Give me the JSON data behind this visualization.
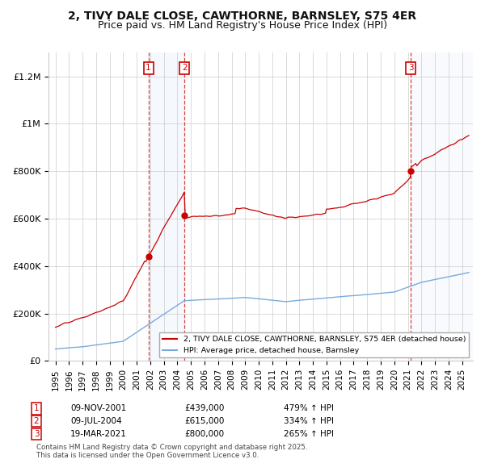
{
  "title": "2, TIVY DALE CLOSE, CAWTHORNE, BARNSLEY, S75 4ER",
  "subtitle": "Price paid vs. HM Land Registry's House Price Index (HPI)",
  "title_fontsize": 10,
  "subtitle_fontsize": 9,
  "property_color": "#cc0000",
  "hpi_color": "#7aaadd",
  "sale_marker_color": "#cc0000",
  "vline_color": "#cc0000",
  "shading_color": "#ccddf5",
  "background_color": "#ffffff",
  "grid_color": "#cccccc",
  "sales": [
    {
      "label": "1",
      "date_num": 2001.86,
      "price": 439000,
      "hpi_pct": "479% ↑ HPI",
      "date_str": "09-NOV-2001"
    },
    {
      "label": "2",
      "date_num": 2004.52,
      "price": 615000,
      "hpi_pct": "334% ↑ HPI",
      "date_str": "09-JUL-2004"
    },
    {
      "label": "3",
      "date_num": 2021.22,
      "price": 800000,
      "hpi_pct": "265% ↑ HPI",
      "date_str": "19-MAR-2021"
    }
  ],
  "legend_entries": [
    "2, TIVY DALE CLOSE, CAWTHORNE, BARNSLEY, S75 4ER (detached house)",
    "HPI: Average price, detached house, Barnsley"
  ],
  "footer": [
    "Contains HM Land Registry data © Crown copyright and database right 2025.",
    "This data is licensed under the Open Government Licence v3.0."
  ],
  "xlim": [
    1994.5,
    2025.8
  ],
  "ylim": [
    0,
    1300000
  ],
  "yticks": [
    0,
    200000,
    400000,
    600000,
    800000,
    1000000,
    1200000
  ],
  "ytick_labels": [
    "£0",
    "£200K",
    "£400K",
    "£600K",
    "£800K",
    "£1M",
    "£1.2M"
  ],
  "xticks": [
    1995,
    1996,
    1997,
    1998,
    1999,
    2000,
    2001,
    2002,
    2003,
    2004,
    2005,
    2006,
    2007,
    2008,
    2009,
    2010,
    2011,
    2012,
    2013,
    2014,
    2015,
    2016,
    2017,
    2018,
    2019,
    2020,
    2021,
    2022,
    2023,
    2024,
    2025
  ]
}
